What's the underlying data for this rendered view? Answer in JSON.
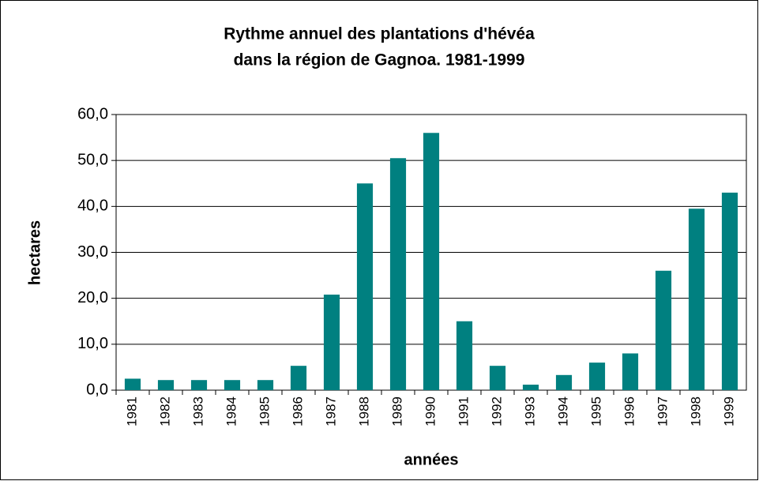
{
  "chart_data": {
    "type": "bar",
    "title": [
      "Rythme annuel des plantations d'hévéa",
      "dans la région de Gagnoa. 1981-1999"
    ],
    "x_label": "années",
    "y_label": "hectares",
    "categories": [
      "1981",
      "1982",
      "1983",
      "1984",
      "1985",
      "1986",
      "1987",
      "1988",
      "1989",
      "1990",
      "1991",
      "1992",
      "1993",
      "1994",
      "1995",
      "1996",
      "1997",
      "1998",
      "1999"
    ],
    "values": [
      2.5,
      2.2,
      2.2,
      2.2,
      2.2,
      5.3,
      20.8,
      45,
      50.5,
      56,
      15,
      5.3,
      1.2,
      3.3,
      6,
      8,
      26,
      39.5,
      43
    ],
    "color": "#008080",
    "ylim": [
      0,
      60
    ],
    "yticks": [
      {
        "value": 0,
        "label": "0,0"
      },
      {
        "value": 10,
        "label": "10,0"
      },
      {
        "value": 20,
        "label": "20,0"
      },
      {
        "value": 30,
        "label": "30,0"
      },
      {
        "value": 40,
        "label": "40,0"
      },
      {
        "value": 50,
        "label": "50,0"
      },
      {
        "value": 60,
        "label": "60,0"
      }
    ],
    "grid": true
  }
}
